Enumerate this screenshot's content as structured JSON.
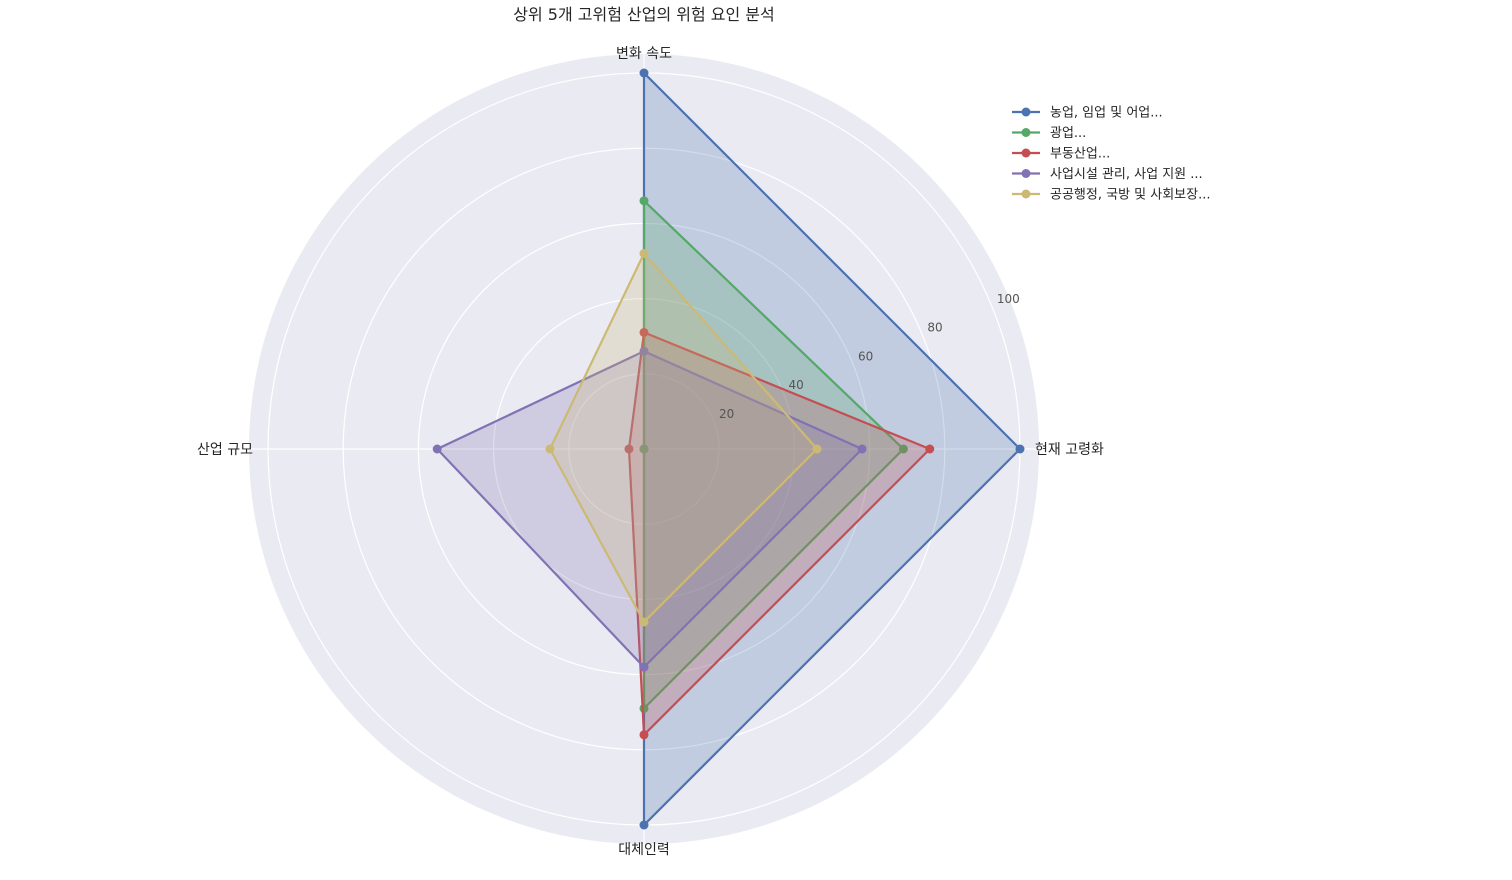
{
  "chart_data": {
    "type": "radar",
    "title": "상위 5개 고위험 산업의 위험 요인 분석",
    "axes": [
      "현재 고령화",
      "변화 속도",
      "산업 규모",
      "대체인력"
    ],
    "rlim": [
      0,
      100
    ],
    "r_ticks": [
      20,
      40,
      60,
      80,
      100
    ],
    "grid": true,
    "legend_position": "upper-right",
    "series": [
      {
        "name": "농업, 임업 및 어업...",
        "color": "#4c72b0",
        "values": [
          100,
          100,
          0,
          100
        ]
      },
      {
        "name": "광업...",
        "color": "#55a868",
        "values": [
          69,
          66,
          0,
          69
        ]
      },
      {
        "name": "부동산업...",
        "color": "#c44e52",
        "values": [
          76,
          31,
          4,
          76
        ]
      },
      {
        "name": "사업시설 관리, 사업 지원 ...",
        "color": "#8172b3",
        "values": [
          58,
          26,
          55,
          58
        ]
      },
      {
        "name": "공공행정, 국방 및 사회보장...",
        "color": "#ccb974",
        "values": [
          46,
          52,
          25,
          46
        ]
      }
    ]
  }
}
